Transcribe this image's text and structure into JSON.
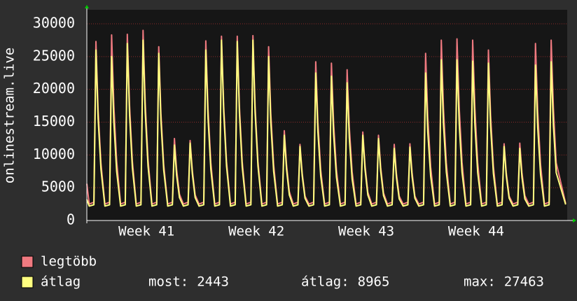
{
  "chart_data": {
    "type": "line",
    "y_label": "onlinestream.live",
    "ylim": [
      0,
      30000
    ],
    "yticks": [
      0,
      5000,
      10000,
      15000,
      20000,
      25000,
      30000
    ],
    "xlim": [
      0,
      30.6
    ],
    "xticks": [
      {
        "value": 3.8,
        "label": "Week 41"
      },
      {
        "value": 10.8,
        "label": "Week 42"
      },
      {
        "value": 17.8,
        "label": "Week 43"
      },
      {
        "value": 24.8,
        "label": "Week 44"
      }
    ],
    "grid": true,
    "x": [
      0,
      0.15,
      0.45,
      0.58,
      0.72,
      0.9,
      1.15,
      1.45,
      1.58,
      1.72,
      1.9,
      2.15,
      2.45,
      2.58,
      2.72,
      2.9,
      3.15,
      3.45,
      3.58,
      3.72,
      3.9,
      4.15,
      4.45,
      4.58,
      4.72,
      4.9,
      5.15,
      5.45,
      5.58,
      5.72,
      5.9,
      6.15,
      6.45,
      6.58,
      6.72,
      6.9,
      7.15,
      7.45,
      7.58,
      7.72,
      7.9,
      8.15,
      8.45,
      8.58,
      8.72,
      8.9,
      9.15,
      9.45,
      9.58,
      9.72,
      9.9,
      10.15,
      10.45,
      10.58,
      10.72,
      10.9,
      11.15,
      11.45,
      11.58,
      11.72,
      11.9,
      12.15,
      12.45,
      12.58,
      12.72,
      12.9,
      13.15,
      13.45,
      13.58,
      13.72,
      13.9,
      14.15,
      14.45,
      14.58,
      14.72,
      14.9,
      15.15,
      15.45,
      15.58,
      15.72,
      15.9,
      16.15,
      16.45,
      16.58,
      16.72,
      16.9,
      17.15,
      17.45,
      17.58,
      17.72,
      17.9,
      18.15,
      18.45,
      18.58,
      18.72,
      18.9,
      19.15,
      19.45,
      19.58,
      19.72,
      19.9,
      20.15,
      20.45,
      20.58,
      20.72,
      20.9,
      21.15,
      21.45,
      21.58,
      21.72,
      21.9,
      22.15,
      22.45,
      22.58,
      22.72,
      22.9,
      23.15,
      23.45,
      23.58,
      23.72,
      23.9,
      24.15,
      24.45,
      24.58,
      24.72,
      24.9,
      25.15,
      25.45,
      25.58,
      25.72,
      25.9,
      26.15,
      26.45,
      26.58,
      26.72,
      26.9,
      27.15,
      27.45,
      27.58,
      27.72,
      27.9,
      28.15,
      28.45,
      28.58,
      28.72,
      28.9,
      29.15,
      29.45,
      29.58,
      29.72,
      29.9,
      30.5
    ],
    "series": [
      {
        "name": "legtöbb",
        "color": "#f07a80",
        "values": [
          5600,
          2500,
          2800,
          27300,
          16900,
          8700,
          2500,
          2800,
          28300,
          17500,
          9100,
          2500,
          2800,
          28400,
          17600,
          9100,
          2500,
          2800,
          29000,
          18000,
          9300,
          2500,
          2800,
          26500,
          16400,
          8500,
          2500,
          2800,
          12500,
          7800,
          4000,
          2500,
          2800,
          12200,
          7600,
          3900,
          2500,
          2800,
          27400,
          17000,
          8800,
          2500,
          2800,
          28100,
          17400,
          9000,
          2500,
          2800,
          28100,
          17400,
          9000,
          2500,
          2800,
          28200,
          17500,
          9000,
          2500,
          2800,
          26500,
          16400,
          8500,
          2500,
          2800,
          13700,
          8500,
          4400,
          2500,
          2800,
          11600,
          7200,
          3700,
          2500,
          2800,
          24200,
          15000,
          7700,
          2500,
          2800,
          24000,
          14900,
          7700,
          2500,
          2800,
          23000,
          14300,
          7400,
          2500,
          2800,
          13500,
          8400,
          4300,
          2500,
          2800,
          13000,
          8100,
          4200,
          2500,
          2800,
          11600,
          7200,
          3700,
          2500,
          2800,
          11700,
          7300,
          3700,
          2500,
          2800,
          25500,
          15800,
          8200,
          2500,
          2800,
          27500,
          17100,
          8800,
          2500,
          2800,
          27700,
          17200,
          8900,
          2500,
          2800,
          27500,
          17100,
          8800,
          2500,
          2800,
          26000,
          16100,
          8300,
          2500,
          2800,
          11700,
          7300,
          3700,
          2500,
          2800,
          11800,
          7300,
          3800,
          2500,
          2800,
          27000,
          16700,
          8600,
          2500,
          2800,
          27500,
          17100,
          8800,
          2600
        ]
      },
      {
        "name": "átlag",
        "color": "#ffff80",
        "values": [
          3200,
          2200,
          2400,
          26000,
          15600,
          7800,
          2200,
          2400,
          25000,
          15000,
          7500,
          2200,
          2400,
          27000,
          16200,
          8100,
          2200,
          2400,
          27500,
          16500,
          8300,
          2200,
          2400,
          25500,
          15300,
          7700,
          2200,
          2400,
          11500,
          6900,
          3500,
          2200,
          2400,
          11800,
          7100,
          3500,
          2200,
          2400,
          26000,
          15600,
          7800,
          2200,
          2400,
          27500,
          16500,
          8300,
          2200,
          2400,
          27300,
          16400,
          8200,
          2200,
          2400,
          27500,
          16500,
          8300,
          2200,
          2400,
          25000,
          15000,
          7500,
          2200,
          2400,
          13000,
          7800,
          3900,
          2200,
          2400,
          11300,
          6800,
          3400,
          2200,
          2400,
          22500,
          13500,
          6800,
          2200,
          2400,
          22000,
          13200,
          6600,
          2200,
          2400,
          21000,
          12600,
          6300,
          2200,
          2400,
          13000,
          7800,
          3900,
          2200,
          2400,
          12500,
          7500,
          3800,
          2200,
          2400,
          11000,
          6600,
          3300,
          2200,
          2400,
          11200,
          6700,
          3400,
          2200,
          2400,
          22500,
          13500,
          6800,
          2200,
          2400,
          24500,
          14700,
          7400,
          2200,
          2400,
          24500,
          14700,
          7400,
          2200,
          2400,
          24300,
          14600,
          7300,
          2200,
          2400,
          24000,
          14400,
          7200,
          2200,
          2400,
          11300,
          6800,
          3400,
          2200,
          2400,
          11000,
          6600,
          3300,
          2200,
          2400,
          23700,
          14200,
          7100,
          2200,
          2400,
          24200,
          14500,
          7300,
          2443
        ]
      }
    ],
    "stats": [
      {
        "label": "most:",
        "value": 2443
      },
      {
        "label": "átlag:",
        "value": 8965
      },
      {
        "label": "max:",
        "value": 27463
      }
    ]
  }
}
